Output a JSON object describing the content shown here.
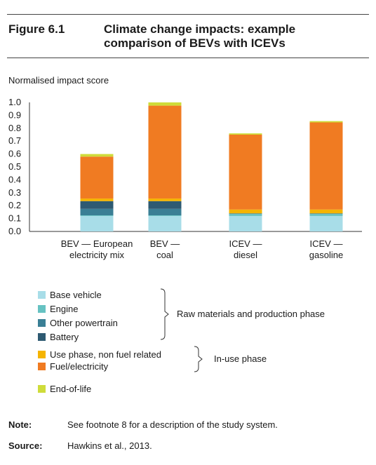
{
  "figure": {
    "label": "Figure 6.1",
    "title_line1": "Climate change impacts: example",
    "title_line2": "comparison of BEVs with ICEVs"
  },
  "chart_data": {
    "type": "bar",
    "stacked": true,
    "ylabel": "Normalised impact score",
    "ylim": [
      0,
      1.0
    ],
    "yticks": [
      "0.0",
      "0.1",
      "0.2",
      "0.3",
      "0.4",
      "0.5",
      "0.6",
      "0.7",
      "0.8",
      "0.9",
      "1.0"
    ],
    "categories": [
      [
        "BEV — European",
        "electricity mix"
      ],
      [
        "BEV —",
        "coal"
      ],
      [
        "ICEV —",
        "diesel"
      ],
      [
        "ICEV —",
        "gasoline"
      ]
    ],
    "series": [
      {
        "name": "Base vehicle",
        "color": "#a8dde8",
        "values": [
          0.12,
          0.12,
          0.12,
          0.12
        ]
      },
      {
        "name": "Engine",
        "color": "#66c2c2",
        "values": [
          0.005,
          0.005,
          0.015,
          0.015
        ]
      },
      {
        "name": "Other powertrain",
        "color": "#3a7f95",
        "values": [
          0.05,
          0.05,
          0.005,
          0.005
        ]
      },
      {
        "name": "Battery",
        "color": "#2e5a72",
        "values": [
          0.06,
          0.06,
          0.0,
          0.0
        ]
      },
      {
        "name": "Use phase, non fuel related",
        "color": "#f5b400",
        "values": [
          0.02,
          0.02,
          0.03,
          0.03
        ]
      },
      {
        "name": "Fuel/electricity",
        "color": "#f07b22",
        "values": [
          0.325,
          0.72,
          0.58,
          0.675
        ]
      },
      {
        "name": "End-of-life",
        "color": "#cfdc3a",
        "values": [
          0.02,
          0.025,
          0.01,
          0.01
        ]
      }
    ],
    "groups": [
      {
        "label": "Raw materials and production phase",
        "series": [
          "Base vehicle",
          "Engine",
          "Other powertrain",
          "Battery"
        ]
      },
      {
        "label": "In-use phase",
        "series": [
          "Use phase, non fuel related",
          "Fuel/electricity"
        ]
      }
    ],
    "legend_position": "bottom"
  },
  "footer": {
    "note_label": "Note:",
    "note_text": "See footnote 8 for a description of the study system.",
    "source_label": "Source:",
    "source_text": "Hawkins et al., 2013."
  }
}
